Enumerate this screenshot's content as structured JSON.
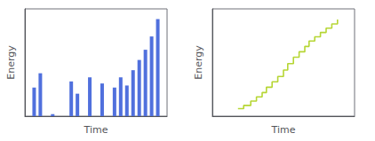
{
  "chart_data": [
    {
      "type": "bar",
      "x": [
        2,
        3,
        5,
        8,
        9,
        11,
        13,
        15,
        16,
        17,
        18,
        19,
        20,
        21,
        22
      ],
      "values": [
        0.28,
        0.42,
        0.02,
        0.34,
        0.22,
        0.38,
        0.32,
        0.28,
        0.38,
        0.3,
        0.45,
        0.55,
        0.65,
        0.78,
        0.95
      ],
      "x_label": "Time",
      "y_label": "Energy",
      "xlim": [
        0.5,
        23.5
      ],
      "ylim": [
        0,
        1.05
      ],
      "tick_labels": false,
      "grid": false
    },
    {
      "type": "line",
      "x": [
        0.18,
        0.22,
        0.22,
        0.27,
        0.27,
        0.31,
        0.31,
        0.35,
        0.35,
        0.38,
        0.38,
        0.42,
        0.42,
        0.46,
        0.46,
        0.5,
        0.5,
        0.53,
        0.53,
        0.57,
        0.57,
        0.61,
        0.61,
        0.65,
        0.65,
        0.68,
        0.68,
        0.72,
        0.72,
        0.76,
        0.76,
        0.8,
        0.8,
        0.84,
        0.84,
        0.88,
        0.88
      ],
      "values": [
        0.07,
        0.07,
        0.1,
        0.1,
        0.14,
        0.14,
        0.18,
        0.18,
        0.22,
        0.22,
        0.27,
        0.27,
        0.32,
        0.32,
        0.37,
        0.37,
        0.43,
        0.43,
        0.49,
        0.49,
        0.55,
        0.55,
        0.6,
        0.6,
        0.65,
        0.65,
        0.7,
        0.7,
        0.74,
        0.74,
        0.78,
        0.78,
        0.82,
        0.82,
        0.86,
        0.86,
        0.9
      ],
      "x_label": "Time",
      "y_label": "Energy",
      "xlim": [
        0,
        1
      ],
      "ylim": [
        0,
        1
      ],
      "tick_labels": false,
      "grid": false
    }
  ]
}
